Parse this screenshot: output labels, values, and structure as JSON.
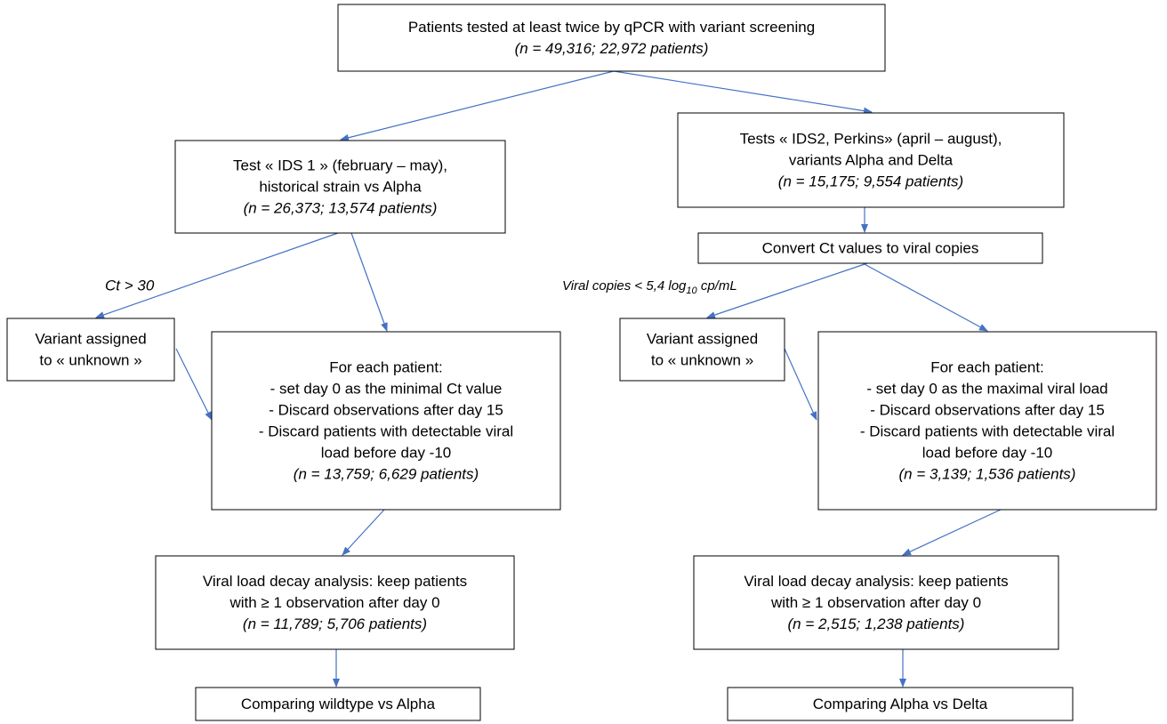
{
  "nodes": [
    {
      "lines": [
        "Patients tested at least twice by qPCR with variant screening"
      ],
      "count": "(n = 49,316; 22,972 patients)"
    },
    {
      "lines": [
        "Test « IDS 1 » (february – may),",
        "historical strain vs Alpha"
      ],
      "count": "(n = 26,373; 13,574 patients)"
    },
    {
      "lines": [
        "Tests « IDS2, Perkins» (april – august),",
        "variants Alpha and Delta"
      ],
      "count": "(n = 15,175; 9,554 patients)"
    },
    {
      "lines": [
        "Convert Ct values to viral copies"
      ]
    },
    {
      "lines": [
        "Variant assigned",
        "to « unknown »"
      ]
    },
    {
      "lines": [
        "For each patient:",
        "- set day 0 as the minimal Ct value",
        "- Discard observations after day 15",
        "- Discard patients with detectable viral",
        "load before day -10"
      ],
      "count": "(n = 13,759; 6,629 patients)"
    },
    {
      "lines": [
        "Variant assigned",
        "to « unknown »"
      ]
    },
    {
      "lines": [
        "For each patient:",
        "- set day 0 as the maximal viral load",
        "- Discard observations after day 15",
        "- Discard patients with detectable viral",
        "load before day -10"
      ],
      "count": "(n = 3,139; 1,536 patients)"
    },
    {
      "lines": [
        "Viral load decay analysis: keep patients",
        "with ≥ 1 observation after day 0"
      ],
      "count": "(n = 11,789; 5,706 patients)"
    },
    {
      "lines": [
        "Viral load decay analysis: keep patients",
        "with ≥ 1 observation after day 0"
      ],
      "count": "(n = 2,515; 1,238 patients)"
    },
    {
      "lines": [
        "Comparing wildtype vs Alpha"
      ]
    },
    {
      "lines": [
        "Comparing Alpha vs Delta"
      ]
    }
  ],
  "edge_labels": {
    "left": "Ct > 30",
    "right": {
      "main": "Viral copies < 5,4 log",
      "sub": "10",
      "unit": " cp/mL"
    }
  }
}
